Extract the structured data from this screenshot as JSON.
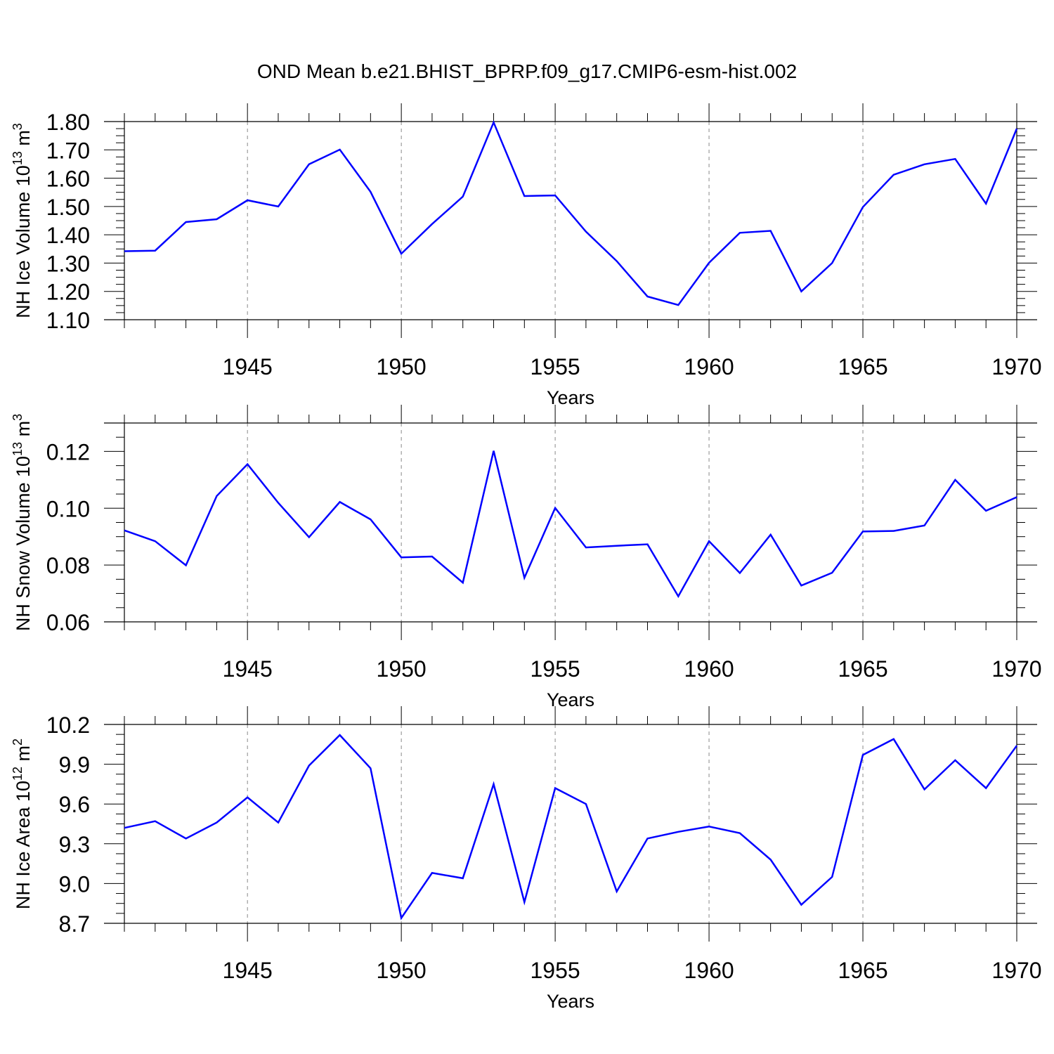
{
  "figure_title": "OND Mean b.e21.BHIST_BPRP.f09_g17.CMIP6-esm-hist.002",
  "colors": {
    "line": "#0000ff",
    "axis": "#000000",
    "grid": "#888888"
  },
  "chart_data": [
    {
      "type": "line",
      "title": "",
      "xlabel": "Years",
      "ylabel": {
        "text": "NH Ice Volume 10",
        "sup1": "13",
        "mid": " m",
        "sup2": "3"
      },
      "xlim": [
        1941,
        1970
      ],
      "ylim": [
        1.1,
        1.8
      ],
      "grid": "vertical dashed at major x ticks",
      "x_major_ticks": [
        1945,
        1950,
        1955,
        1960,
        1965,
        1970
      ],
      "x_tick_labels": [
        "1945",
        "1950",
        "1955",
        "1960",
        "1965",
        "1970"
      ],
      "y_major_ticks": [
        1.1,
        1.2,
        1.3,
        1.4,
        1.5,
        1.6,
        1.7,
        1.8
      ],
      "y_tick_labels": [
        "1.10",
        "1.20",
        "1.30",
        "1.40",
        "1.50",
        "1.60",
        "1.70",
        "1.80"
      ],
      "y_minor_step": 0.025,
      "series": [
        {
          "name": "NH Ice Volume",
          "x": [
            1941,
            1942,
            1943,
            1944,
            1945,
            1946,
            1947,
            1948,
            1949,
            1950,
            1951,
            1952,
            1953,
            1954,
            1955,
            1956,
            1957,
            1958,
            1959,
            1960,
            1961,
            1962,
            1963,
            1964,
            1965,
            1966,
            1967,
            1968,
            1969,
            1970
          ],
          "values": [
            1.342,
            1.344,
            1.445,
            1.455,
            1.522,
            1.5,
            1.649,
            1.701,
            1.552,
            1.333,
            1.438,
            1.535,
            1.797,
            1.537,
            1.539,
            1.411,
            1.307,
            1.182,
            1.152,
            1.301,
            1.407,
            1.414,
            1.2,
            1.3,
            1.498,
            1.612,
            1.649,
            1.668,
            1.51,
            1.775
          ]
        }
      ]
    },
    {
      "type": "line",
      "title": "",
      "xlabel": "Years",
      "ylabel": {
        "text": "NH Snow Volume 10",
        "sup1": "13",
        "mid": " m",
        "sup2": "3"
      },
      "xlim": [
        1941,
        1970
      ],
      "ylim": [
        0.06,
        0.13
      ],
      "grid": "vertical dashed at major x ticks",
      "x_major_ticks": [
        1945,
        1950,
        1955,
        1960,
        1965,
        1970
      ],
      "x_tick_labels": [
        "1945",
        "1950",
        "1955",
        "1960",
        "1965",
        "1970"
      ],
      "y_major_ticks": [
        0.06,
        0.08,
        0.1,
        0.12
      ],
      "y_tick_labels": [
        "0.06",
        "0.08",
        "0.10",
        "0.12"
      ],
      "y_minor_step": 0.005,
      "series": [
        {
          "name": "NH Snow Volume",
          "x": [
            1941,
            1942,
            1943,
            1944,
            1945,
            1946,
            1947,
            1948,
            1949,
            1950,
            1951,
            1952,
            1953,
            1954,
            1955,
            1956,
            1957,
            1958,
            1959,
            1960,
            1961,
            1962,
            1963,
            1964,
            1965,
            1966,
            1967,
            1968,
            1969,
            1970
          ],
          "values": [
            0.0922,
            0.0884,
            0.0799,
            0.1043,
            0.1155,
            0.1019,
            0.0898,
            0.1022,
            0.0961,
            0.0827,
            0.083,
            0.0738,
            0.1202,
            0.0755,
            0.1001,
            0.0862,
            0.0868,
            0.0873,
            0.069,
            0.0884,
            0.0772,
            0.0907,
            0.0728,
            0.0773,
            0.0918,
            0.092,
            0.0939,
            0.11,
            0.0991,
            0.1039
          ]
        }
      ]
    },
    {
      "type": "line",
      "title": "",
      "xlabel": "Years",
      "ylabel": {
        "text": "NH Ice Area 10",
        "sup1": "12",
        "mid": " m",
        "sup2": "2"
      },
      "xlim": [
        1941,
        1970
      ],
      "ylim": [
        8.7,
        10.2
      ],
      "grid": "vertical dashed at major x ticks",
      "x_major_ticks": [
        1945,
        1950,
        1955,
        1960,
        1965,
        1970
      ],
      "x_tick_labels": [
        "1945",
        "1950",
        "1955",
        "1960",
        "1965",
        "1970"
      ],
      "y_major_ticks": [
        8.7,
        9.0,
        9.3,
        9.6,
        9.9,
        10.2
      ],
      "y_tick_labels": [
        "8.7",
        "9.0",
        "9.3",
        "9.6",
        "9.9",
        "10.2"
      ],
      "y_minor_step": 0.075,
      "series": [
        {
          "name": "NH Ice Area",
          "x": [
            1941,
            1942,
            1943,
            1944,
            1945,
            1946,
            1947,
            1948,
            1949,
            1950,
            1951,
            1952,
            1953,
            1954,
            1955,
            1956,
            1957,
            1958,
            1959,
            1960,
            1961,
            1962,
            1963,
            1964,
            1965,
            1966,
            1967,
            1968,
            1969,
            1970
          ],
          "values": [
            9.42,
            9.47,
            9.34,
            9.46,
            9.65,
            9.46,
            9.89,
            10.12,
            9.87,
            8.74,
            9.08,
            9.04,
            9.75,
            8.86,
            9.72,
            9.6,
            8.94,
            9.34,
            9.39,
            9.43,
            9.38,
            9.18,
            8.84,
            9.05,
            9.97,
            10.09,
            9.71,
            9.93,
            9.72,
            10.04
          ]
        }
      ]
    }
  ]
}
